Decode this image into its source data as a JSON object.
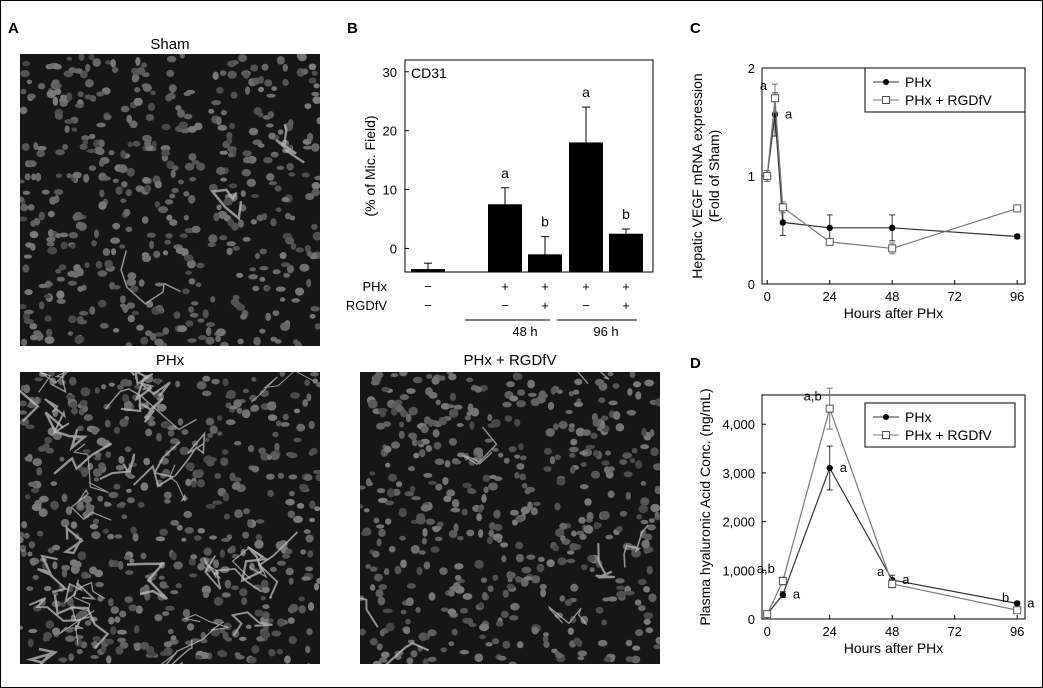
{
  "panels": {
    "A": {
      "label": "A",
      "images": [
        {
          "title": "Sham"
        },
        {
          "title": "PHx"
        }
      ]
    },
    "B": {
      "label": "B",
      "image_title": "PHx + RGDfV"
    },
    "C": {
      "label": "C"
    },
    "D": {
      "label": "D"
    }
  },
  "chart_data": [
    {
      "id": "B",
      "type": "bar",
      "title": "CD31",
      "ylabel": "(% of Mic. Field)",
      "yticks": [
        0,
        10,
        20,
        30
      ],
      "ylim": [
        -4,
        32
      ],
      "categories": [
        "Sham",
        "PHx 48 h",
        "PHx + RGDfV 48 h",
        "PHx 96 h",
        "PHx + RGDfV 96 h"
      ],
      "values": [
        -3.5,
        7.5,
        -1,
        18,
        2.5
      ],
      "errors": [
        1,
        2.8,
        3,
        6,
        0.8
      ],
      "annotations": [
        "",
        "a",
        "b",
        "a",
        "b"
      ],
      "row_labels": [
        "PHx",
        "RGDfV"
      ],
      "rows": [
        [
          "−",
          "+",
          "+",
          "+",
          "+"
        ],
        [
          "−",
          "−",
          "+",
          "−",
          "+"
        ]
      ],
      "groups": [
        "48 h",
        "96 h"
      ]
    },
    {
      "id": "C",
      "type": "line",
      "xlabel": "Hours after PHx",
      "ylabel": "Hepatic VEGF mRNA expression\n(Fold of Sham)",
      "xticks": [
        0,
        24,
        48,
        72,
        96
      ],
      "yticks": [
        0,
        1,
        2
      ],
      "xlim": [
        -2,
        99
      ],
      "ylim": [
        0,
        2
      ],
      "legend": "top-right",
      "series": [
        {
          "name": "PHx",
          "marker": "filled",
          "x": [
            0,
            3,
            6,
            24,
            48,
            96
          ],
          "y": [
            1.0,
            1.57,
            0.57,
            0.52,
            0.52,
            0.44
          ],
          "err": [
            0.05,
            0.2,
            0.12,
            0.12,
            0.12,
            0.02
          ],
          "labels": [
            "",
            "a",
            "",
            "",
            "",
            ""
          ]
        },
        {
          "name": "PHx + RGDfV",
          "marker": "open",
          "x": [
            0,
            3,
            6,
            24,
            48,
            96
          ],
          "y": [
            1.0,
            1.72,
            0.71,
            0.39,
            0.33,
            0.7
          ],
          "err": [
            0.05,
            0.13,
            0.05,
            0.02,
            0.05,
            0.03
          ],
          "labels": [
            "",
            "a",
            "",
            "",
            "",
            ""
          ]
        }
      ]
    },
    {
      "id": "D",
      "type": "line",
      "xlabel": "Hours after PHx",
      "ylabel": "Plasma hyaluronic Acid Conc. (ng/mL)",
      "xticks": [
        0,
        24,
        48,
        72,
        96
      ],
      "ytick_labels": [
        "0",
        "1,000",
        "2,000",
        "3,000",
        "4,000"
      ],
      "yticks": [
        0,
        1000,
        2000,
        3000,
        4000
      ],
      "xlim": [
        -2,
        99
      ],
      "ylim": [
        0,
        4600
      ],
      "legend": "top-right",
      "series": [
        {
          "name": "PHx",
          "marker": "filled",
          "x": [
            0,
            6,
            24,
            48,
            96
          ],
          "y": [
            100,
            500,
            3100,
            800,
            320
          ],
          "err": [
            30,
            60,
            450,
            100,
            30
          ],
          "labels": [
            "",
            "a",
            "a",
            "a",
            "a"
          ]
        },
        {
          "name": "PHx + RGDfV",
          "marker": "open",
          "x": [
            0,
            6,
            24,
            48,
            96
          ],
          "y": [
            100,
            780,
            4320,
            720,
            180
          ],
          "err": [
            30,
            80,
            420,
            80,
            30
          ],
          "labels": [
            "",
            "a,b",
            "a,b",
            "a",
            "b"
          ]
        }
      ]
    }
  ]
}
